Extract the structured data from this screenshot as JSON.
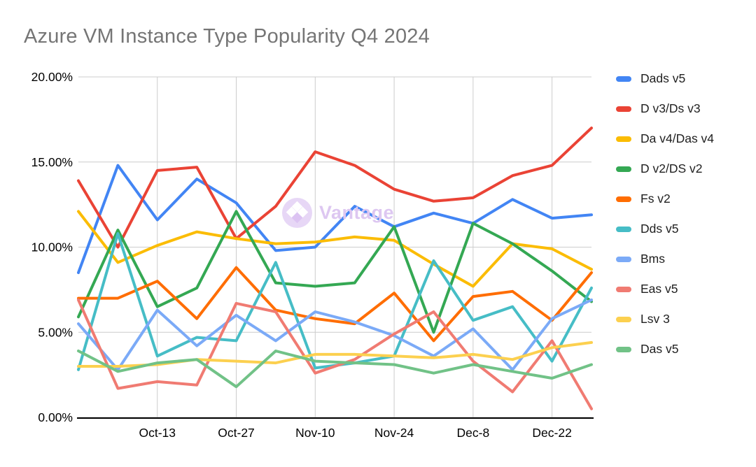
{
  "title": "Azure VM Instance Type Popularity Q4 2024",
  "watermark": {
    "text": "Vantage",
    "circle_color": "#e7d7f6",
    "text_color": "#ddc7f1"
  },
  "axis_colors": {
    "grid": "#cccccc",
    "axis_line": "#000000",
    "tick_text": "#000000"
  },
  "chart_data": {
    "type": "line",
    "x": [
      "Sep-29",
      "Oct-6",
      "Oct-13",
      "Oct-20",
      "Oct-27",
      "Nov-3",
      "Nov-10",
      "Nov-17",
      "Nov-24",
      "Dec-1",
      "Dec-8",
      "Dec-15",
      "Dec-22",
      "Dec-29"
    ],
    "x_tick_indices": [
      2,
      4,
      6,
      8,
      10,
      12
    ],
    "x_tick_labels": [
      "Oct-13",
      "Oct-27",
      "Nov-10",
      "Nov-24",
      "Dec-8",
      "Dec-22"
    ],
    "y_tick_labels": [
      "0.00%",
      "5.00%",
      "10.00%",
      "15.00%",
      "20.00%"
    ],
    "y_tick_values": [
      0,
      5,
      10,
      15,
      20
    ],
    "ylim": [
      0,
      20
    ],
    "grid": true,
    "legend_position": "right",
    "series": [
      {
        "name": "Dads v5",
        "color": "#4285F4",
        "values": [
          8.5,
          14.8,
          11.6,
          14.0,
          12.6,
          9.8,
          10.0,
          12.4,
          11.2,
          12.0,
          11.4,
          12.8,
          11.7,
          11.9
        ]
      },
      {
        "name": "D v3/Ds v3",
        "color": "#EA4335",
        "values": [
          13.9,
          10.0,
          14.5,
          14.7,
          10.5,
          12.4,
          15.6,
          14.8,
          13.4,
          12.7,
          12.9,
          14.2,
          14.8,
          17.0
        ]
      },
      {
        "name": "Da v4/Das v4",
        "color": "#FBBC04",
        "values": [
          12.1,
          9.1,
          10.1,
          10.9,
          10.5,
          10.2,
          10.3,
          10.6,
          10.4,
          9.0,
          7.7,
          10.2,
          9.9,
          8.7
        ]
      },
      {
        "name": "D v2/DS v2",
        "color": "#34A853",
        "values": [
          5.9,
          11.0,
          6.5,
          7.6,
          12.1,
          7.9,
          7.7,
          7.9,
          11.2,
          5.0,
          11.4,
          10.2,
          8.6,
          6.8
        ]
      },
      {
        "name": "Fs v2",
        "color": "#FF6D01",
        "values": [
          7.0,
          7.0,
          8.0,
          5.8,
          8.8,
          6.3,
          5.8,
          5.5,
          7.3,
          4.5,
          7.1,
          7.4,
          5.7,
          8.5
        ]
      },
      {
        "name": "Dds v5",
        "color": "#46BDC6",
        "values": [
          2.8,
          10.8,
          3.6,
          4.7,
          4.5,
          9.1,
          2.9,
          3.2,
          3.6,
          9.2,
          5.7,
          6.5,
          3.3,
          7.6
        ]
      },
      {
        "name": "Bms",
        "color": "#7BAAF7",
        "values": [
          5.5,
          2.8,
          6.3,
          4.2,
          6.0,
          4.5,
          6.2,
          5.6,
          4.8,
          3.6,
          5.2,
          2.8,
          5.8,
          6.9
        ]
      },
      {
        "name": "Eas v5",
        "color": "#F07B72",
        "values": [
          6.9,
          1.7,
          2.1,
          1.9,
          6.7,
          6.2,
          2.6,
          3.4,
          4.9,
          6.2,
          3.3,
          1.5,
          4.5,
          0.5
        ]
      },
      {
        "name": "Lsv 3",
        "color": "#FCD04F",
        "values": [
          3.0,
          3.0,
          3.1,
          3.4,
          3.3,
          3.2,
          3.7,
          3.7,
          3.6,
          3.5,
          3.7,
          3.4,
          4.1,
          4.4
        ]
      },
      {
        "name": "Das v5",
        "color": "#71C287",
        "values": [
          3.9,
          2.7,
          3.2,
          3.4,
          1.8,
          3.9,
          3.3,
          3.2,
          3.1,
          2.6,
          3.1,
          2.7,
          2.3,
          3.1
        ]
      }
    ]
  }
}
